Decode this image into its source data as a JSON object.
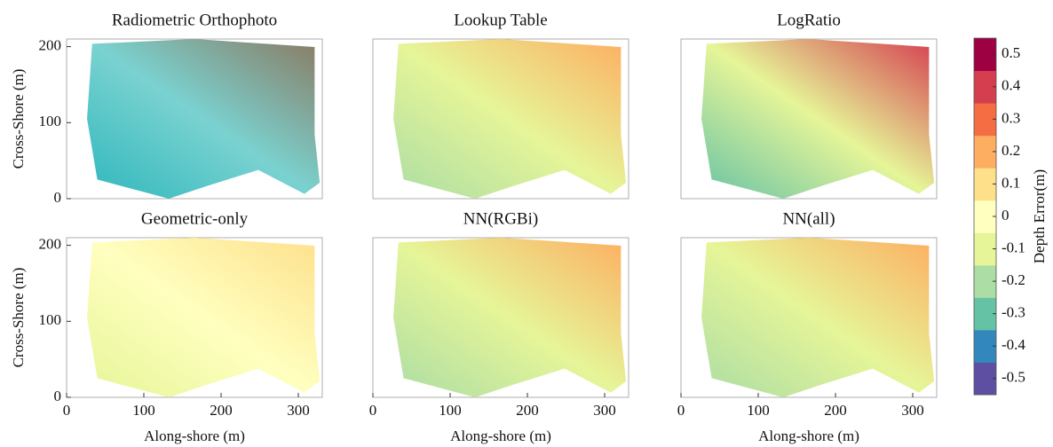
{
  "chart_data": [
    {
      "type": "image",
      "title": "Radiometric Orthophoto",
      "ylabel": "Cross-Shore (m)",
      "ylim": [
        0,
        210
      ],
      "yticks": [
        0,
        100,
        200
      ],
      "colors": [
        "#2fb7bd",
        "#7ad2d0",
        "#8a7a62"
      ]
    },
    {
      "type": "image",
      "title": "Lookup Table",
      "colors": [
        "#abdda4",
        "#e6f598",
        "#fdae61"
      ]
    },
    {
      "type": "image",
      "title": "LogRatio",
      "colors": [
        "#66c2a5",
        "#e6f598",
        "#d53e4f"
      ]
    },
    {
      "type": "image",
      "title": "Geometric-only",
      "xlabel": "Along-shore (m)",
      "ylabel": "Cross-Shore (m)",
      "xlim": [
        0,
        331
      ],
      "xticks": [
        0,
        100,
        200,
        300
      ],
      "ylim": [
        0,
        210
      ],
      "yticks": [
        0,
        100,
        200
      ],
      "colors": [
        "#e6f598",
        "#ffffbf",
        "#fee08b"
      ]
    },
    {
      "type": "image",
      "title": "NN(RGBi)",
      "xlabel": "Along-shore (m)",
      "xlim": [
        0,
        331
      ],
      "xticks": [
        0,
        100,
        200,
        300
      ],
      "colors": [
        "#abdda4",
        "#e6f598",
        "#fdae61"
      ]
    },
    {
      "type": "image",
      "title": "NN(all)",
      "xlabel": "Along-shore (m)",
      "xlim": [
        0,
        331
      ],
      "xticks": [
        0,
        100,
        200,
        300
      ],
      "colors": [
        "#abdda4",
        "#e6f598",
        "#fdae61"
      ]
    },
    {
      "type": "colorbar",
      "label": "Depth Error(m)",
      "ylim": [
        -0.55,
        0.55
      ],
      "yticks": [
        0.5,
        0.4,
        0.3,
        0.2,
        0.1,
        0,
        -0.1,
        -0.2,
        -0.3,
        -0.4,
        -0.5
      ],
      "colors": [
        "#5e4fa2",
        "#3288bd",
        "#66c2a5",
        "#abdda4",
        "#e6f598",
        "#ffffbf",
        "#fee08b",
        "#fdae61",
        "#f46d43",
        "#d53e4f",
        "#9e0142"
      ]
    }
  ]
}
